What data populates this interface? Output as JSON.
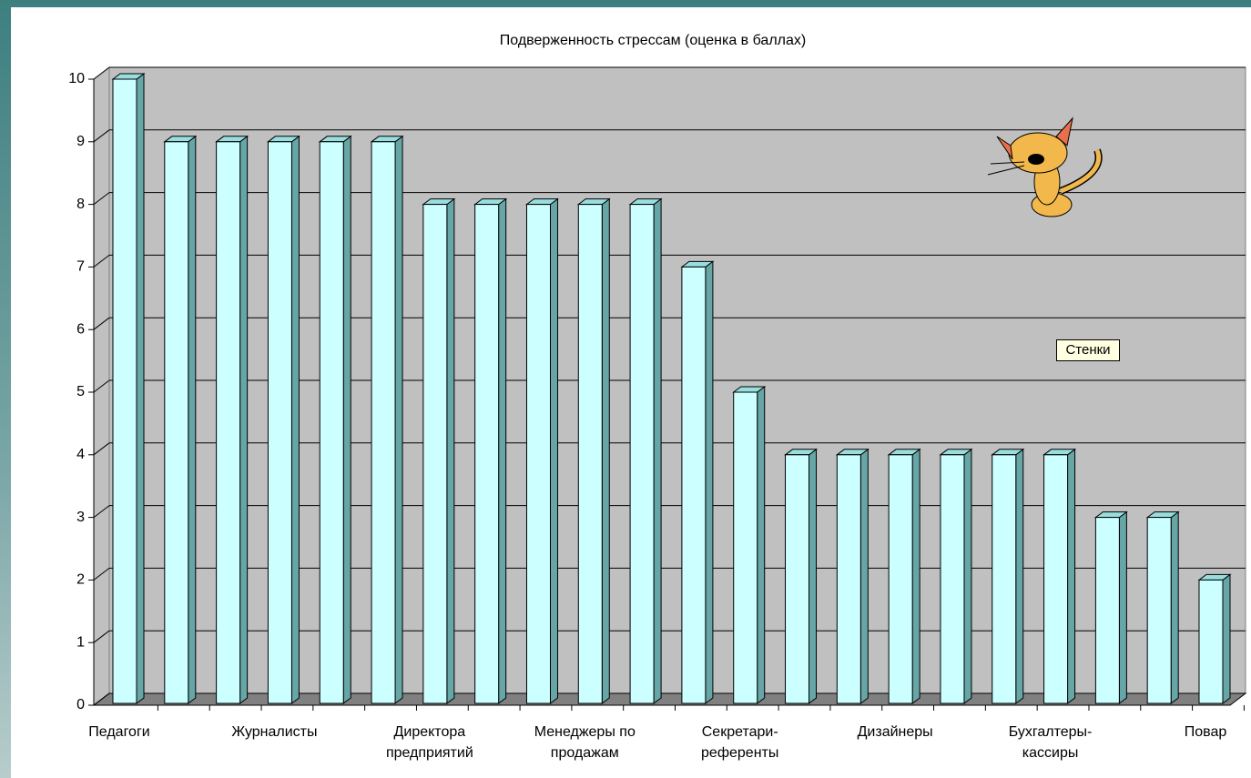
{
  "chart_data": {
    "type": "bar3d",
    "title": "Подверженность стрессам (оценка в баллах)",
    "categories": [
      "Педагоги",
      null,
      null,
      "Журналисты",
      null,
      null,
      "Директора\nпредприятий",
      null,
      null,
      "Менеджеры по\nпродажам",
      null,
      null,
      "Секретари-\nреференты",
      null,
      null,
      "Дизайнеры",
      null,
      null,
      "Бухгалтеры-\nкассиры",
      null,
      null,
      "Повар"
    ],
    "values": [
      10,
      9,
      9,
      9,
      9,
      9,
      8,
      8,
      8,
      8,
      8,
      7,
      5,
      4,
      4,
      4,
      4,
      4,
      4,
      3,
      3,
      2
    ],
    "color": "#ccffff",
    "ylim": [
      0,
      10
    ],
    "yticks": [
      0,
      1,
      2,
      3,
      4,
      5,
      6,
      7,
      8,
      9,
      10
    ],
    "grid": true,
    "annotations": [
      "Стенки"
    ]
  }
}
